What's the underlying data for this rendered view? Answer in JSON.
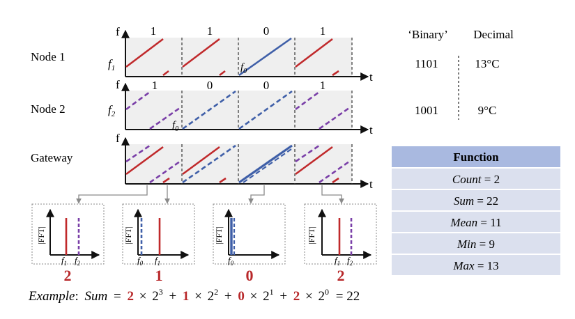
{
  "rows": [
    {
      "label": "Node 1",
      "bits": [
        "1",
        "1",
        "0",
        "1"
      ],
      "freq_label": "f",
      "freq_sub": "1",
      "f0_label": "f",
      "f0_sub": "0"
    },
    {
      "label": "Node 2",
      "bits": [
        "1",
        "0",
        "0",
        "1"
      ],
      "freq_label": "f",
      "freq_sub": "2",
      "f0_label": "f",
      "f0_sub": "0"
    },
    {
      "label": "Gateway"
    }
  ],
  "axis": {
    "y": "f",
    "x": "t"
  },
  "binary_table": {
    "headers": [
      "‘Binary’",
      "Decimal"
    ],
    "rows": [
      {
        "binary": "1101",
        "decimal": "13°C"
      },
      {
        "binary": "1001",
        "decimal": "9°C"
      }
    ]
  },
  "function_table": {
    "header": "Function",
    "rows": [
      {
        "name": "Count",
        "value": "= 2"
      },
      {
        "name": "Sum",
        "value": "= 22"
      },
      {
        "name": "Mean",
        "value": "= 11"
      },
      {
        "name": "Min",
        "value": "= 9"
      },
      {
        "name": "Max",
        "value": "= 13"
      }
    ]
  },
  "fft_panels": [
    {
      "ylabel": "|FFT|",
      "ticks": [
        {
          "f": "f",
          "sub": "1"
        },
        {
          "f": "f",
          "sub": "2"
        }
      ],
      "count": "2"
    },
    {
      "ylabel": "|FFT|",
      "ticks": [
        {
          "f": "f",
          "sub": "0"
        },
        {
          "f": "f",
          "sub": "1"
        }
      ],
      "count": "1"
    },
    {
      "ylabel": "|FFT|",
      "ticks": [
        {
          "f": "f",
          "sub": "0"
        }
      ],
      "count": "0"
    },
    {
      "ylabel": "|FFT|",
      "ticks": [
        {
          "f": "f",
          "sub": "1"
        },
        {
          "f": "f",
          "sub": "2"
        }
      ],
      "count": "2"
    }
  ],
  "example": {
    "prefix": "Example",
    "colon": ":",
    "sum": "Sum",
    "eq": "=",
    "terms": [
      {
        "coef": "2",
        "base": "2",
        "exp": "3"
      },
      {
        "coef": "1",
        "base": "2",
        "exp": "2"
      },
      {
        "coef": "0",
        "base": "2",
        "exp": "1"
      },
      {
        "coef": "2",
        "base": "2",
        "exp": "0"
      }
    ],
    "times": "×",
    "plus": "+",
    "result": "= 22"
  },
  "colors": {
    "red": "#c0292b",
    "blue": "#3f5fa8",
    "purple": "#7a3fa8",
    "panel_bg": "#efefef",
    "count_red": "#b8282a",
    "table_header": "#a9b9e0",
    "table_row": "#dbe0ee"
  }
}
